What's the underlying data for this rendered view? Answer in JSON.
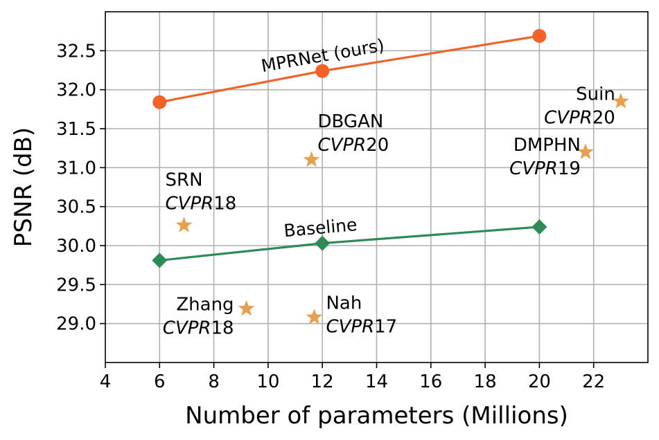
{
  "chart_data": {
    "type": "scatter",
    "title": "",
    "xlabel": "Number of parameters (Millions)",
    "ylabel": "PSNR (dB)",
    "xlim": [
      4,
      24
    ],
    "ylim": [
      28.5,
      33.0
    ],
    "x_ticks": [
      4,
      6,
      8,
      10,
      12,
      14,
      16,
      18,
      20,
      22
    ],
    "x_tick_labels": [
      "4",
      "6",
      "8",
      "10",
      "12",
      "14",
      "16",
      "18",
      "20",
      "22"
    ],
    "y_ticks": [
      29.0,
      29.5,
      30.0,
      30.5,
      31.0,
      31.5,
      32.0,
      32.5
    ],
    "y_tick_labels": [
      "29.0",
      "29.5",
      "30.0",
      "30.5",
      "31.0",
      "31.5",
      "32.0",
      "32.5"
    ],
    "grid": true,
    "series": [
      {
        "name": "MPRNet (ours)",
        "kind": "line",
        "marker": "circle",
        "color": "#f4622a",
        "label_text": "MPRNet (ours)",
        "x": [
          6,
          12,
          20
        ],
        "y": [
          31.84,
          32.24,
          32.69
        ]
      },
      {
        "name": "Baseline",
        "kind": "line",
        "marker": "diamond",
        "color": "#2e8b57",
        "label_text": "Baseline",
        "x": [
          6,
          12,
          20
        ],
        "y": [
          29.81,
          30.03,
          30.24
        ]
      }
    ],
    "methods": [
      {
        "name": "SRN",
        "venue": "CVPR",
        "year": "18",
        "x": 6.9,
        "y": 30.26
      },
      {
        "name": "DBGAN",
        "venue": "CVPR",
        "year": "20",
        "x": 11.6,
        "y": 31.1
      },
      {
        "name": "DMPHN",
        "venue": "CVPR",
        "year": "19",
        "x": 21.7,
        "y": 31.2
      },
      {
        "name": "Suin",
        "venue": "CVPR",
        "year": "20",
        "x": 23.0,
        "y": 31.85
      },
      {
        "name": "Zhang",
        "venue": "CVPR",
        "year": "18",
        "x": 9.2,
        "y": 29.19
      },
      {
        "name": "Nah",
        "venue": "CVPR",
        "year": "17",
        "x": 11.7,
        "y": 29.08
      }
    ],
    "method_marker_color": "#e8a04f"
  }
}
